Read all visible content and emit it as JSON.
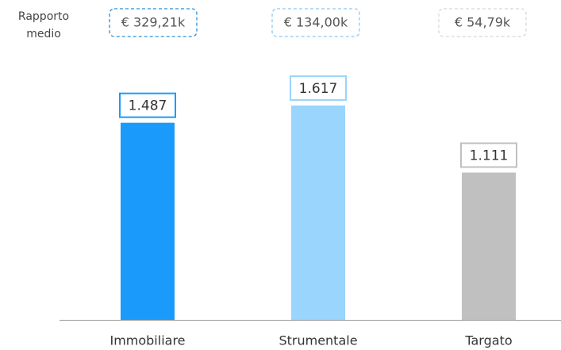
{
  "chart_data": {
    "type": "bar",
    "categories": [
      "Immobiliare",
      "Strumentale",
      "Targato"
    ],
    "values": [
      1487,
      1617,
      1111
    ],
    "value_labels": [
      "1.487",
      "1.617",
      "1.111"
    ],
    "colors": [
      "#1a9bfc",
      "#99d5fc",
      "#c0c0c0"
    ],
    "average_title": "Rapporto medio",
    "average_labels": [
      "€ 329,21k",
      "€ 134,00k",
      "€ 54,79k"
    ],
    "average_colors": [
      "#2a8fd8",
      "#8fc8ee",
      "#d8d8d8"
    ]
  }
}
